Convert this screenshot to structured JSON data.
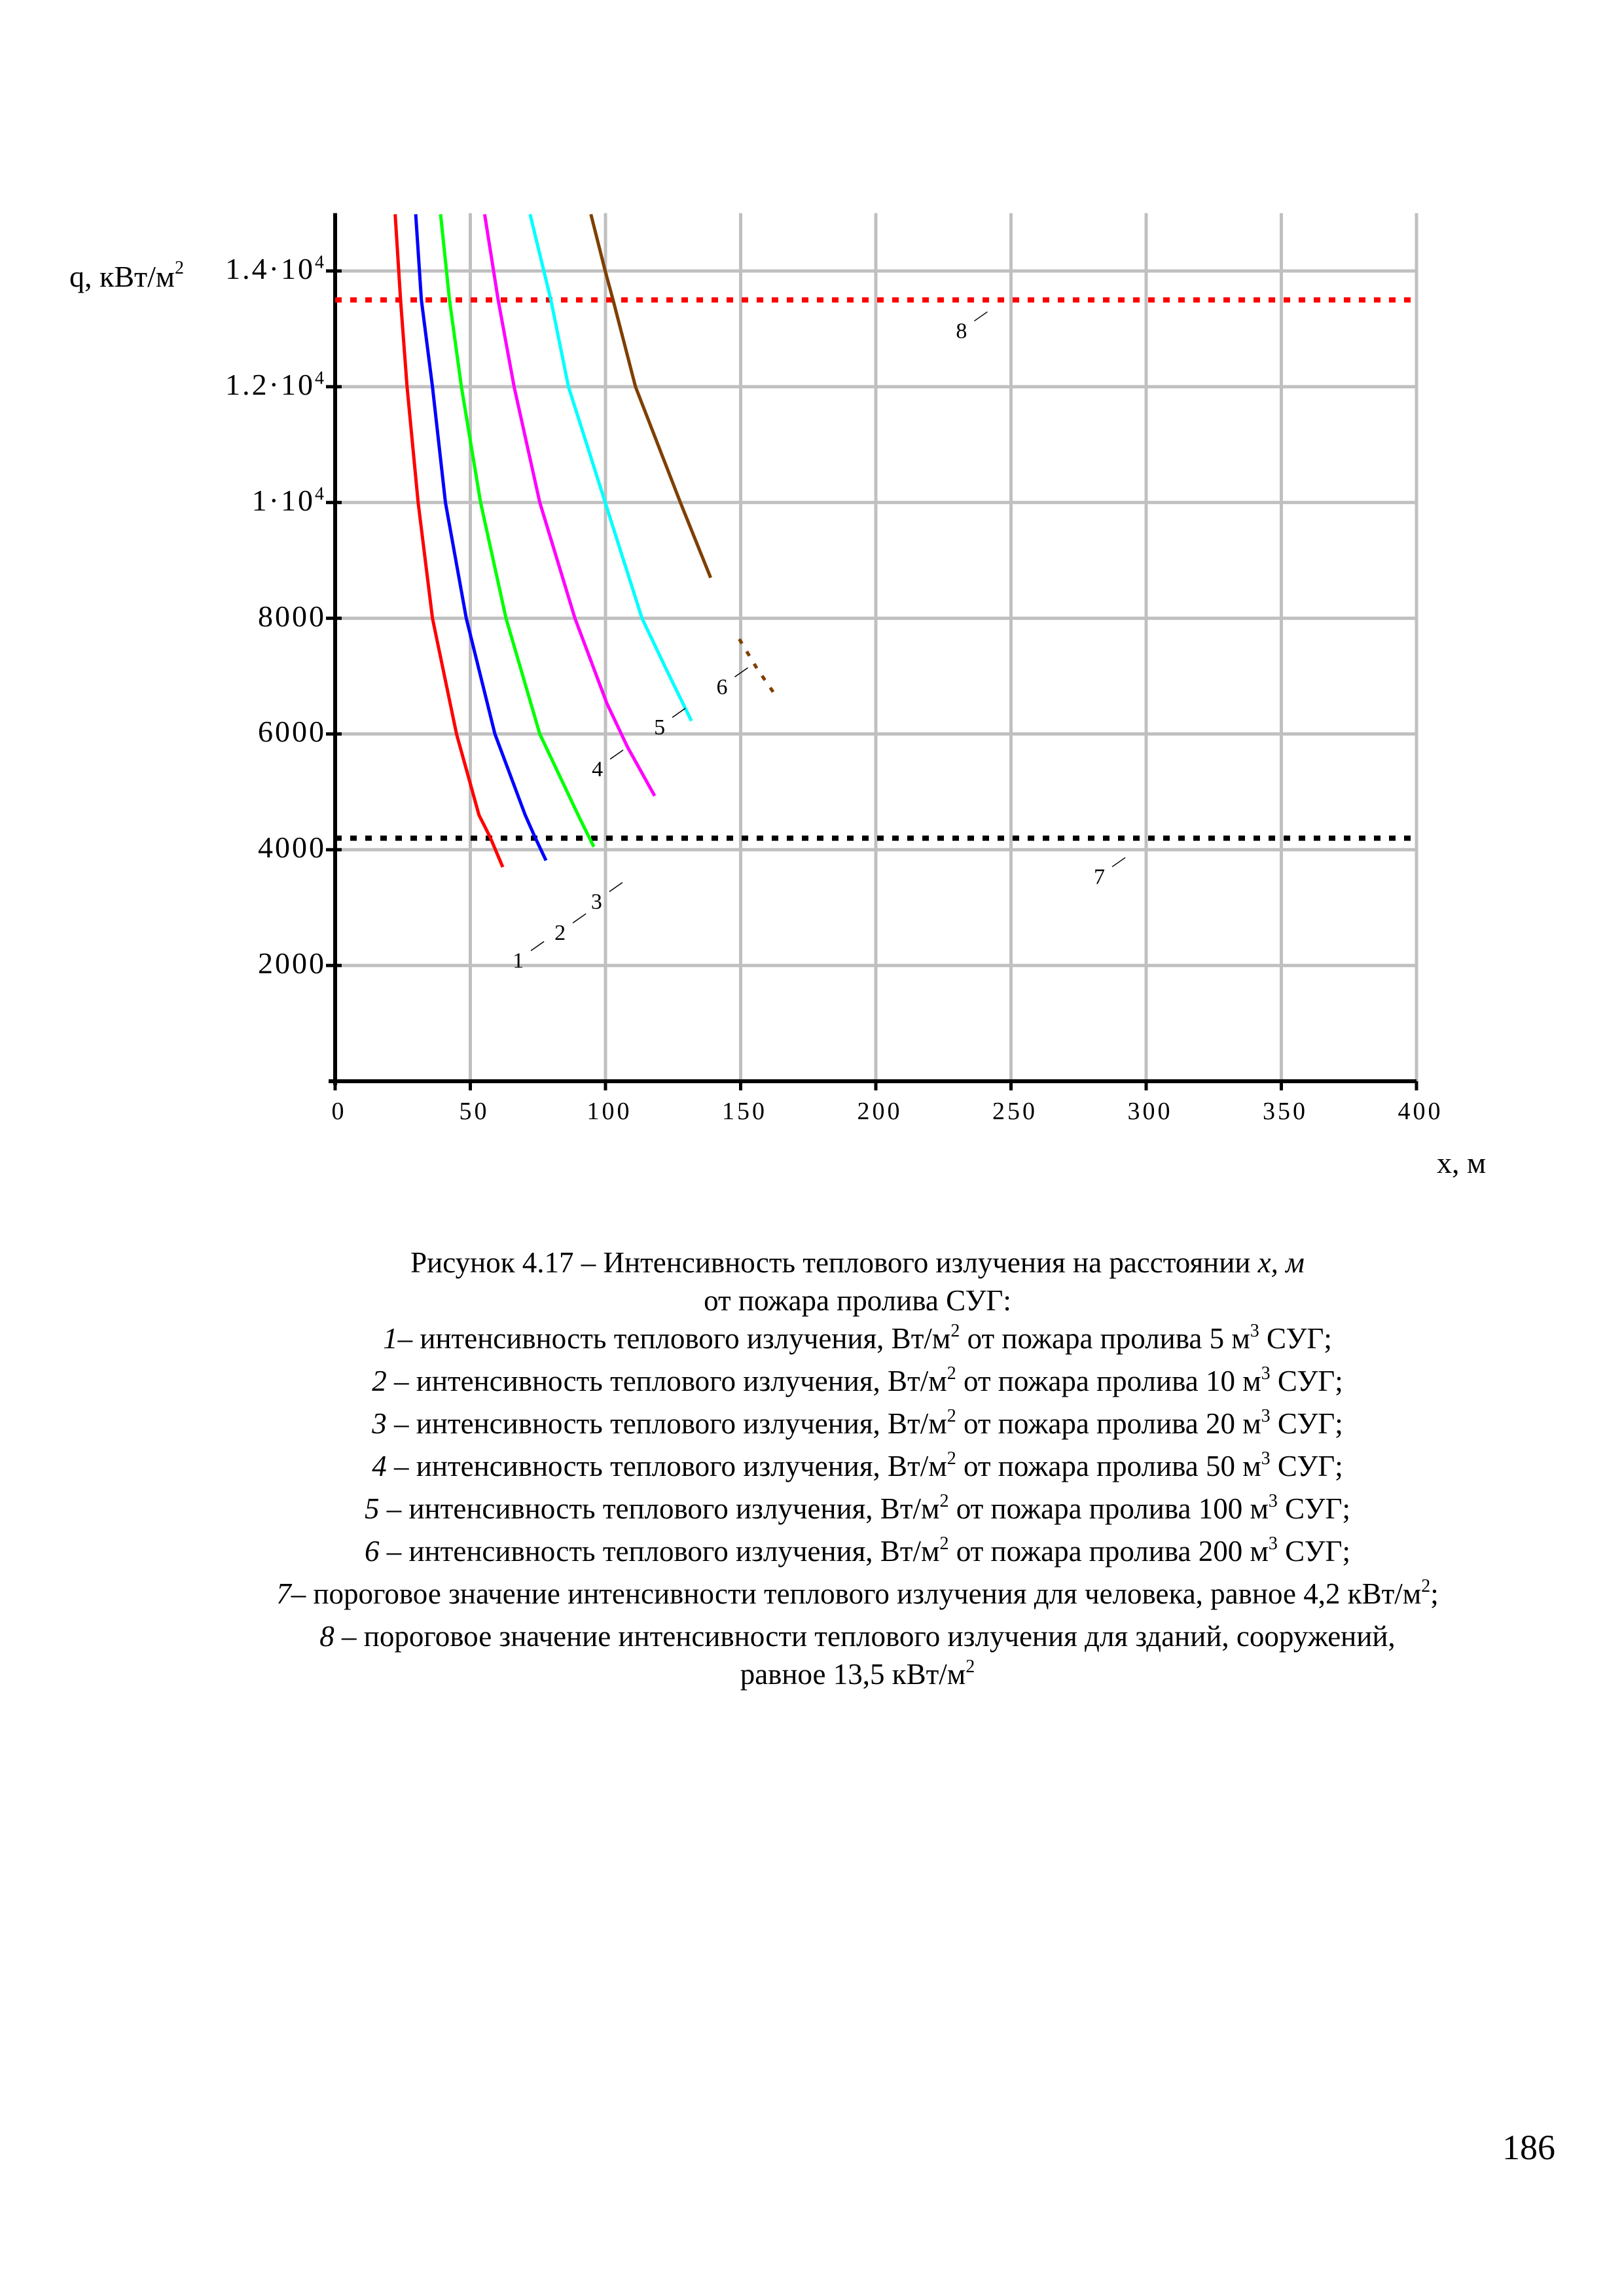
{
  "chart_data": {
    "type": "line",
    "xlabel": "x, м",
    "ylabel": "q, кВт/м",
    "ylabel_sup": "2",
    "xlim": [
      0,
      400
    ],
    "ylim": [
      0,
      15000
    ],
    "grid": true,
    "xticks": [
      0,
      50,
      100,
      150,
      200,
      250,
      300,
      350,
      400
    ],
    "xtick_labels": [
      "0",
      "50",
      "100",
      "150",
      "200",
      "250",
      "300",
      "350",
      "400"
    ],
    "yticks": [
      2000,
      4000,
      6000,
      8000,
      10000,
      12000,
      14000
    ],
    "ytick_labels": [
      {
        "base": "2000",
        "exp": ""
      },
      {
        "base": "4000",
        "exp": ""
      },
      {
        "base": "6000",
        "exp": ""
      },
      {
        "base": "8000",
        "exp": ""
      },
      {
        "base": "1·10",
        "exp": "4"
      },
      {
        "base": "1.2·10",
        "exp": "4"
      },
      {
        "base": "1.4·10",
        "exp": "4"
      }
    ],
    "series": [
      {
        "name": "1",
        "color": "#ff0000",
        "label_at": [
          70,
          2120
        ],
        "points": [
          [
            22.2,
            14980
          ],
          [
            24.2,
            13500
          ],
          [
            26.6,
            12000
          ],
          [
            30.7,
            10000
          ],
          [
            36,
            8000
          ],
          [
            44.9,
            6000
          ],
          [
            53.2,
            4600
          ],
          [
            57.3,
            4220
          ],
          [
            62,
            3700
          ]
        ]
      },
      {
        "name": "2",
        "color": "#0000ff",
        "label_at": [
          85.5,
          2600
        ],
        "points": [
          [
            29.8,
            14980
          ],
          [
            31.9,
            13500
          ],
          [
            36,
            12000
          ],
          [
            40.8,
            10000
          ],
          [
            48.5,
            8000
          ],
          [
            59.1,
            6000
          ],
          [
            70.3,
            4600
          ],
          [
            73.9,
            4220
          ],
          [
            78,
            3815
          ]
        ]
      },
      {
        "name": "3",
        "color": "#00ff00",
        "label_at": [
          99,
          3140
        ],
        "points": [
          [
            39,
            14980
          ],
          [
            42.3,
            13500
          ],
          [
            46.7,
            12000
          ],
          [
            53.8,
            10000
          ],
          [
            63.2,
            8000
          ],
          [
            75.7,
            6000
          ],
          [
            90.4,
            4550
          ],
          [
            95.7,
            4050
          ]
        ]
      },
      {
        "name": "4",
        "color": "#ff00ff",
        "label_at": [
          99.3,
          5430
        ],
        "points": [
          [
            55.3,
            14980
          ],
          [
            60.3,
            13500
          ],
          [
            66.2,
            12000
          ],
          [
            75.7,
            10000
          ],
          [
            88.7,
            8000
          ],
          [
            100.5,
            6530
          ],
          [
            108.2,
            5770
          ],
          [
            118.2,
            4930
          ]
        ]
      },
      {
        "name": "5",
        "color": "#00ffff",
        "label_at": [
          122.3,
          6150
        ],
        "points": [
          [
            72.1,
            14980
          ],
          [
            79.8,
            13500
          ],
          [
            86.3,
            12000
          ],
          [
            99.9,
            10000
          ],
          [
            113.5,
            8000
          ],
          [
            122.3,
            7135
          ],
          [
            131.8,
            6225
          ]
        ]
      },
      {
        "name": "6",
        "color": "#7f3f00",
        "label_at": [
          145.4,
          6850
        ],
        "points": [
          [
            94.6,
            14980
          ],
          [
            99.9,
            14000
          ],
          [
            102.8,
            13500
          ],
          [
            111.1,
            12000
          ],
          [
            127.7,
            10000
          ],
          [
            138.9,
            8700
          ]
        ],
        "points2": [
          [
            149.5,
            7640
          ],
          [
            156,
            7135
          ],
          [
            163,
            6660
          ]
        ]
      }
    ],
    "thresholds": [
      {
        "name": "7",
        "value": 4200,
        "color": "#000000",
        "label_at": [
          285,
          3570
        ]
      },
      {
        "name": "8",
        "value": 13500,
        "color": "#ff0000",
        "label_at": [
          234,
          13000
        ]
      }
    ]
  },
  "caption": {
    "lines": [
      [
        {
          "t": "Рисунок 4.17 – Интенсивность теплового излучения на расстоянии "
        },
        {
          "t": "x, м",
          "i": true
        }
      ],
      [
        {
          "t": "от пожара пролива СУГ:"
        }
      ],
      [
        {
          "t": "1",
          "i": true
        },
        {
          "t": "– интенсивность теплового излучения, Вт/м"
        },
        {
          "t": "2",
          "s": true
        },
        {
          "t": " от пожара пролива 5 м"
        },
        {
          "t": "3",
          "s": true
        },
        {
          "t": " СУГ;"
        }
      ],
      [
        {
          "t": "2",
          "i": true
        },
        {
          "t": " – интенсивность теплового излучения, Вт/м"
        },
        {
          "t": "2",
          "s": true
        },
        {
          "t": " от пожара пролива 10 м"
        },
        {
          "t": "3",
          "s": true
        },
        {
          "t": " СУГ;"
        }
      ],
      [
        {
          "t": "3",
          "i": true
        },
        {
          "t": " – интенсивность теплового излучения, Вт/м"
        },
        {
          "t": "2",
          "s": true
        },
        {
          "t": " от пожара пролива 20 м"
        },
        {
          "t": "3",
          "s": true
        },
        {
          "t": " СУГ;"
        }
      ],
      [
        {
          "t": "4",
          "i": true
        },
        {
          "t": " – интенсивность теплового излучения, Вт/м"
        },
        {
          "t": "2",
          "s": true
        },
        {
          "t": " от пожара пролива 50 м"
        },
        {
          "t": "3",
          "s": true
        },
        {
          "t": " СУГ;"
        }
      ],
      [
        {
          "t": "5",
          "i": true
        },
        {
          "t": " – интенсивность теплового излучения, Вт/м"
        },
        {
          "t": "2",
          "s": true
        },
        {
          "t": " от пожара пролива 100 м"
        },
        {
          "t": "3",
          "s": true
        },
        {
          "t": " СУГ;"
        }
      ],
      [
        {
          "t": "6",
          "i": true
        },
        {
          "t": " – интенсивность теплового излучения, Вт/м"
        },
        {
          "t": "2",
          "s": true
        },
        {
          "t": " от пожара пролива 200 м"
        },
        {
          "t": "3",
          "s": true
        },
        {
          "t": " СУГ;"
        }
      ],
      [
        {
          "t": "7",
          "i": true
        },
        {
          "t": "– пороговое значение интенсивности теплового излучения для человека, равное 4,2 кВт/м"
        },
        {
          "t": "2",
          "s": true
        },
        {
          "t": ";"
        }
      ],
      [
        {
          "t": "8",
          "i": true
        },
        {
          "t": " – пороговое значение интенсивности теплового излучения для зданий, сооружений,"
        }
      ],
      [
        {
          "t": "равное 13,5 кВт/м"
        },
        {
          "t": "2",
          "s": true
        }
      ]
    ]
  },
  "page_number": "186"
}
